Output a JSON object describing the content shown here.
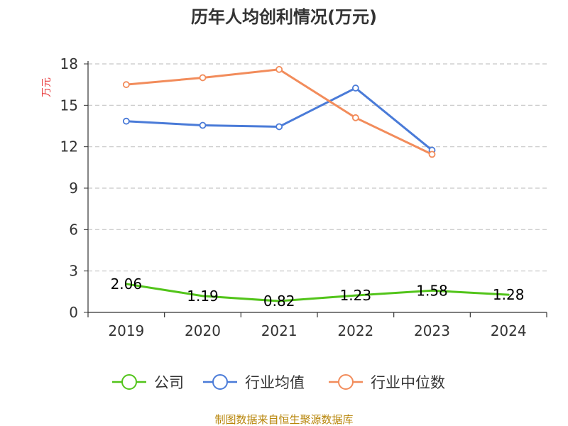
{
  "chart_data": {
    "type": "line",
    "title": "历年人均创利情况(万元)",
    "ylabel": "万元",
    "xlabel": "",
    "categories": [
      "2019",
      "2020",
      "2021",
      "2022",
      "2023",
      "2024"
    ],
    "ylim": [
      0,
      18
    ],
    "yticks": [
      0,
      3,
      6,
      9,
      12,
      15,
      18
    ],
    "grid": true,
    "legend_position": "bottom",
    "series": [
      {
        "name": "公司",
        "color": "#52c41a",
        "values": [
          2.06,
          1.19,
          0.82,
          1.23,
          1.58,
          1.28
        ],
        "labels": [
          "2.06",
          "1.19",
          "0.82",
          "1.23",
          "1.58",
          "1.28"
        ],
        "show_markers": false
      },
      {
        "name": "行业均值",
        "color": "#4a7bd8",
        "values": [
          13.85,
          13.55,
          13.45,
          16.25,
          11.75,
          null
        ],
        "show_markers": true
      },
      {
        "name": "行业中位数",
        "color": "#f28c5b",
        "values": [
          16.5,
          17.0,
          17.6,
          14.1,
          11.45,
          null
        ],
        "show_markers": true
      }
    ]
  },
  "source": "制图数据来自恒生聚源数据库"
}
